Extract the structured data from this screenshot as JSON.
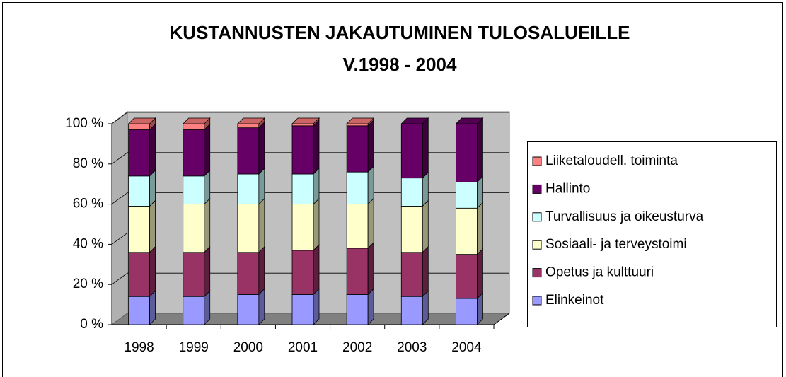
{
  "chart_data": {
    "type": "bar",
    "stacked": true,
    "title": [
      "KUSTANNUSTEN JAKAUTUMINEN TULOSALUEILLE",
      "V.1998 - 2004"
    ],
    "categories": [
      "1998",
      "1999",
      "2000",
      "2001",
      "2002",
      "2003",
      "2004"
    ],
    "series": [
      {
        "name": "Elinkeinot",
        "color": "#9999ff",
        "values": [
          14,
          14,
          15,
          15,
          15,
          14,
          13
        ]
      },
      {
        "name": "Opetus ja kulttuuri",
        "color": "#993366",
        "values": [
          22,
          22,
          21,
          22,
          23,
          22,
          22
        ]
      },
      {
        "name": "Sosiaali- ja terveystoimi",
        "color": "#ffffcc",
        "values": [
          23,
          24,
          24,
          23,
          22,
          23,
          23
        ]
      },
      {
        "name": "Turvallisuus ja oikeusturva",
        "color": "#ccffff",
        "values": [
          15,
          14,
          15,
          15,
          16,
          14,
          13
        ]
      },
      {
        "name": "Hallinto",
        "color": "#660066",
        "values": [
          23,
          23,
          23,
          24,
          23,
          27,
          29
        ]
      },
      {
        "name": "Liiketaloudell. toiminta",
        "color": "#ff8080",
        "values": [
          3,
          3,
          2,
          1,
          1,
          0,
          0
        ]
      }
    ],
    "ylim": [
      0,
      100
    ],
    "yticks": [
      {
        "value": 0,
        "label": "0 %"
      },
      {
        "value": 20,
        "label": "20 %"
      },
      {
        "value": 40,
        "label": "40 %"
      },
      {
        "value": 60,
        "label": "60 %"
      },
      {
        "value": 80,
        "label": "80 %"
      },
      {
        "value": 100,
        "label": "100 %"
      }
    ],
    "grid": true,
    "legend": "right"
  }
}
